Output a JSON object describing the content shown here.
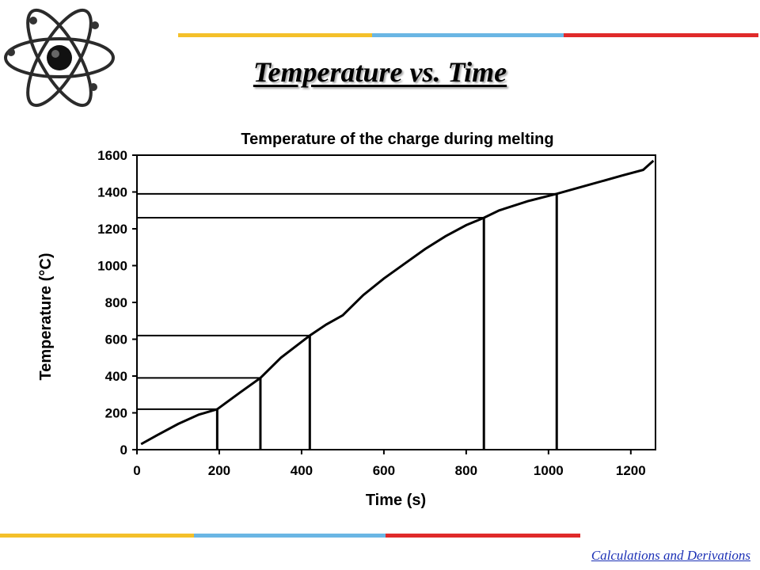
{
  "slide": {
    "title": "Temperature vs. Time",
    "footer": "Calculations and Derivations"
  },
  "colors": {
    "yellow": "#f4c02a",
    "blue": "#6ab6e4",
    "red": "#e02a2a"
  },
  "logo": {
    "icon": "atom-icon"
  },
  "chart_data": {
    "type": "line",
    "title": "Temperature of the charge during melting",
    "xlabel": "Time (s)",
    "ylabel": "Temperature (°C)",
    "xlim": [
      0,
      1260
    ],
    "ylim": [
      0,
      1600
    ],
    "xticks": [
      0,
      200,
      400,
      600,
      800,
      1000,
      1200
    ],
    "yticks": [
      0,
      200,
      400,
      600,
      800,
      1000,
      1200,
      1400,
      1600
    ],
    "grid": false,
    "series": [
      {
        "x": [
          10,
          50,
          100,
          150,
          195,
          250,
          300,
          350,
          420,
          460,
          500,
          550,
          600,
          650,
          700,
          750,
          800,
          843,
          880,
          950,
          1020,
          1100,
          1180,
          1230,
          1255
        ],
        "y": [
          30,
          80,
          140,
          190,
          220,
          310,
          390,
          500,
          620,
          680,
          730,
          840,
          930,
          1010,
          1090,
          1160,
          1220,
          1260,
          1300,
          1350,
          1390,
          1440,
          1490,
          1520,
          1570
        ]
      }
    ],
    "reference_points": [
      {
        "x": 195,
        "y": 220
      },
      {
        "x": 300,
        "y": 390
      },
      {
        "x": 420,
        "y": 620
      },
      {
        "x": 843,
        "y": 1260
      },
      {
        "x": 1020,
        "y": 1390
      }
    ]
  }
}
